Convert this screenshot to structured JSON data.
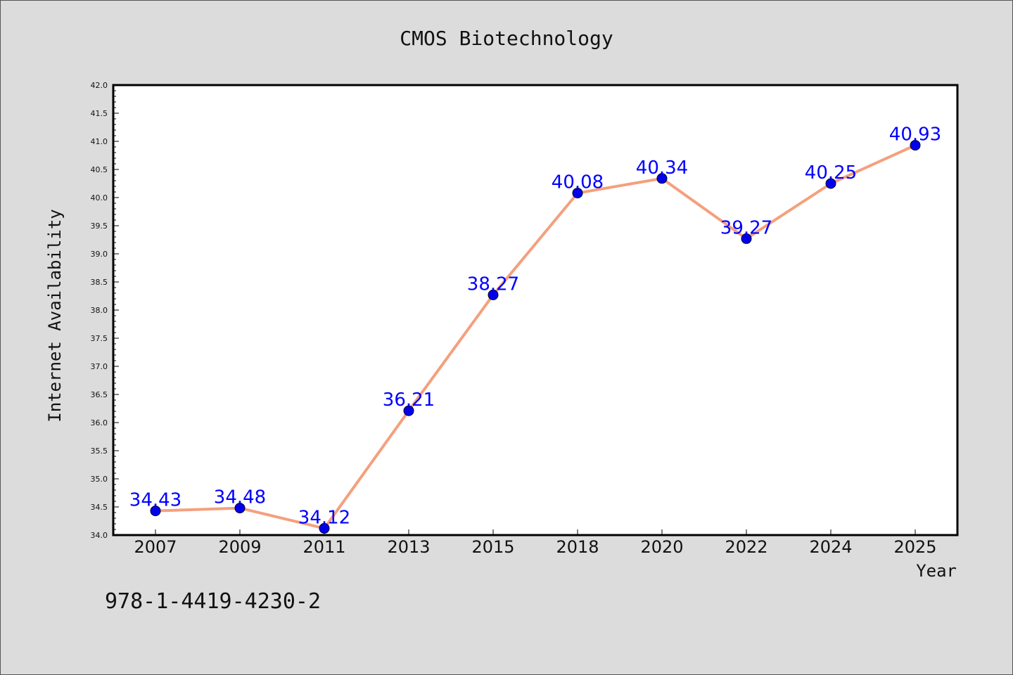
{
  "chart_data": {
    "type": "line",
    "title": "CMOS Biotechnology",
    "xlabel": "Year",
    "ylabel": "Internet Availability",
    "categories": [
      "2007",
      "2009",
      "2011",
      "2013",
      "2015",
      "2018",
      "2020",
      "2022",
      "2024",
      "2025"
    ],
    "series": [
      {
        "values": [
          34.43,
          34.48,
          34.12,
          36.21,
          38.27,
          40.08,
          40.34,
          39.27,
          40.25,
          40.93
        ],
        "line_color": "#f4a07e",
        "marker_color": "#0000ee",
        "label_color": "#0000ff"
      }
    ],
    "data_labels": [
      "34.43",
      "34.48",
      "34.12",
      "36.21",
      "38.27",
      "40.08",
      "40.34",
      "39.27",
      "40.25",
      "40.93"
    ],
    "ylim": [
      34.0,
      42.0
    ],
    "y_ticks": [
      "34.0",
      "34.5",
      "35.0",
      "35.5",
      "36.0",
      "36.5",
      "37.0",
      "37.5",
      "38.0",
      "38.5",
      "39.0",
      "39.5",
      "40.0",
      "40.5",
      "41.0",
      "41.5",
      "42.0"
    ],
    "grid": false,
    "legend": "none"
  },
  "footer": {
    "isbn": "978-1-4419-4230-2"
  },
  "colors": {
    "background": "#dcdcdc",
    "plot_background": "#ffffff"
  }
}
